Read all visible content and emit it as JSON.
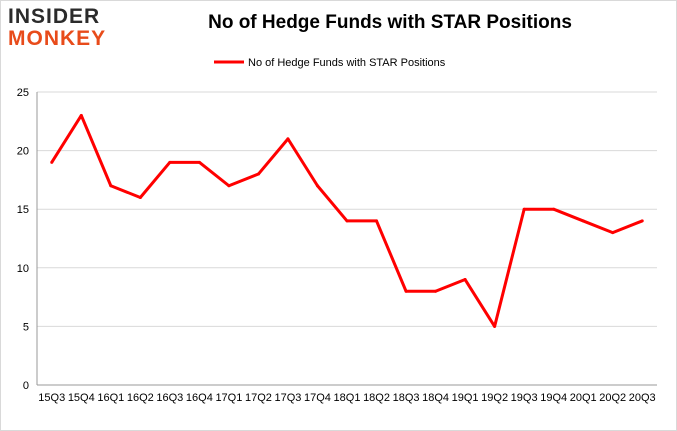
{
  "logo": {
    "line1": "INSIDER",
    "line2": "MONKEY"
  },
  "colors": {
    "series": "#ff0000",
    "grid": "#d9d9d9",
    "logo_accent": "#e84b1a"
  },
  "chart_data": {
    "type": "line",
    "title": "No of Hedge Funds with STAR Positions",
    "xlabel": "",
    "ylabel": "",
    "ylim": [
      0,
      25
    ],
    "yticks": [
      0,
      5,
      10,
      15,
      20,
      25
    ],
    "grid": true,
    "legend": "top-center",
    "categories": [
      "15Q3",
      "15Q4",
      "16Q1",
      "16Q2",
      "16Q3",
      "16Q4",
      "17Q1",
      "17Q2",
      "17Q3",
      "17Q4",
      "18Q1",
      "18Q2",
      "18Q3",
      "18Q4",
      "19Q1",
      "19Q2",
      "19Q3",
      "19Q4",
      "20Q1",
      "20Q2",
      "20Q3"
    ],
    "series": [
      {
        "name": "No of Hedge Funds with STAR Positions",
        "values": [
          19,
          23,
          17,
          16,
          19,
          19,
          17,
          18,
          21,
          17,
          14,
          14,
          8,
          8,
          9,
          5,
          15,
          15,
          14,
          13,
          14
        ]
      }
    ]
  }
}
